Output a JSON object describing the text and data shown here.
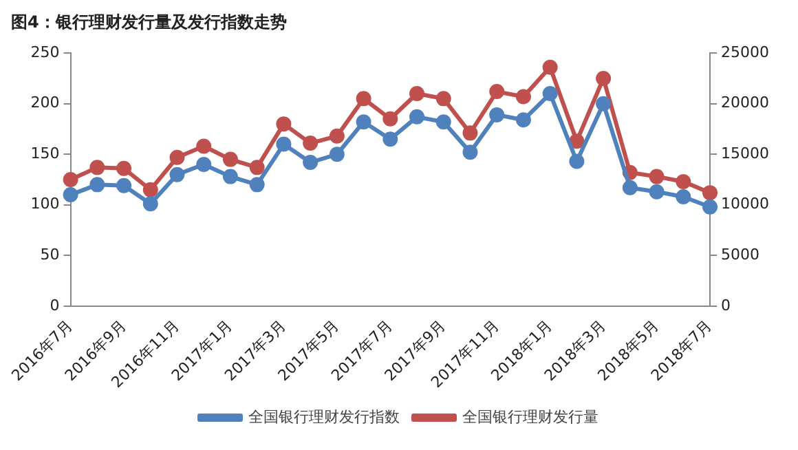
{
  "chart_data": {
    "type": "line",
    "title": "图4：银行理财发行量及发行指数走势",
    "categories": [
      "2016年7月",
      null,
      "2016年9月",
      null,
      "2016年11月",
      null,
      "2017年1月",
      null,
      "2017年3月",
      null,
      "2017年5月",
      null,
      "2017年7月",
      null,
      "2017年9月",
      null,
      "2017年11月",
      null,
      "2018年1月",
      null,
      "2018年3月",
      null,
      "2018年5月",
      null,
      "2018年7月"
    ],
    "series": [
      {
        "name": "全国银行理财发行指数",
        "color": "#4f81bd",
        "values": [
          110,
          120,
          119,
          101,
          130,
          140,
          128,
          120,
          160,
          142,
          150,
          182,
          165,
          187,
          182,
          152,
          189,
          184,
          210,
          143,
          200,
          117,
          113,
          108,
          98
        ]
      },
      {
        "name": "全国银行理财发行量",
        "color": "#c0504d",
        "axis": "y2",
        "values": [
          12500,
          13700,
          13600,
          11500,
          14700,
          15800,
          14500,
          13700,
          18000,
          16100,
          16800,
          20500,
          18500,
          21000,
          20500,
          17100,
          21200,
          20700,
          23600,
          16300,
          22500,
          13200,
          12800,
          12300,
          11200
        ]
      }
    ],
    "ylim": [
      0,
      250
    ],
    "yticks": [
      0,
      50,
      100,
      150,
      200,
      250
    ],
    "y2lim": [
      0,
      25000
    ],
    "y2ticks": [
      0,
      5000,
      10000,
      15000,
      20000,
      25000
    ],
    "grid": false,
    "legend": "bottom",
    "marker": "circle",
    "line_style": "solid"
  }
}
